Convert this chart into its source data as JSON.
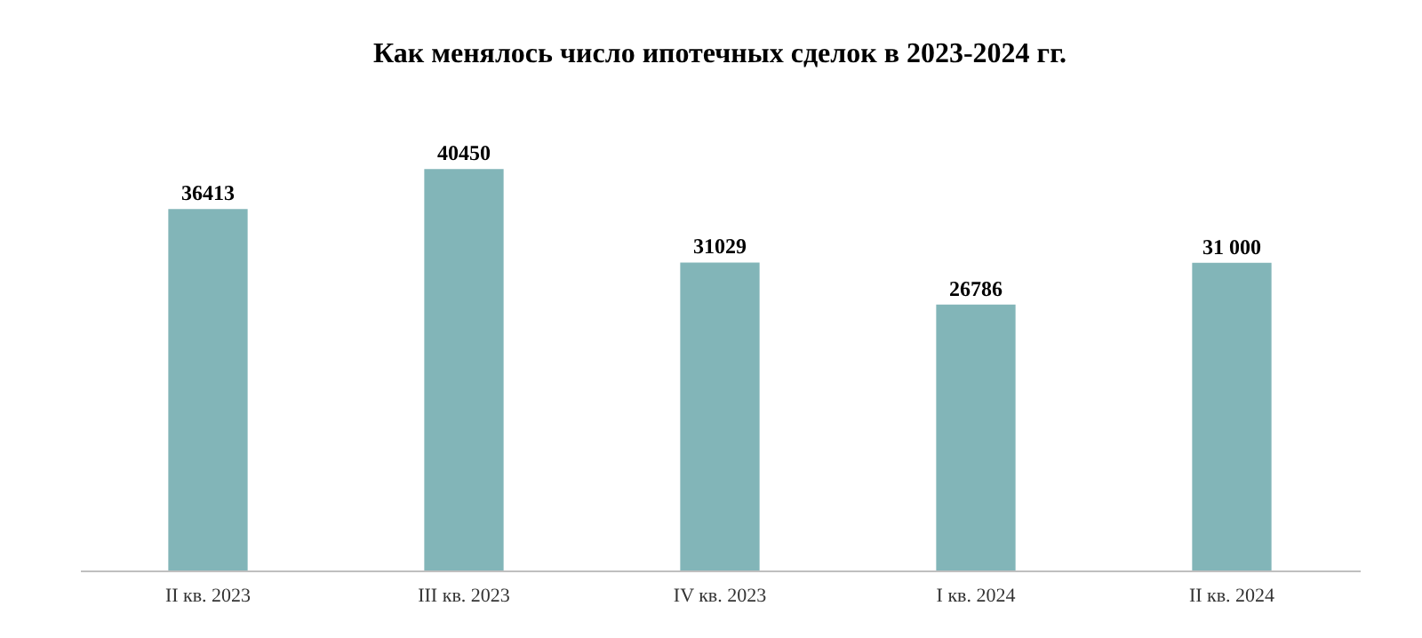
{
  "chart_data": {
    "type": "bar",
    "title": "Как менялось число ипотечных сделок в 2023-2024 гг.",
    "categories": [
      "II кв. 2023",
      "III кв. 2023",
      "IV кв. 2023",
      "I кв. 2024",
      "II кв. 2024"
    ],
    "values": [
      36413,
      40450,
      31029,
      26786,
      31000
    ],
    "value_labels": [
      "36413",
      "40450",
      "31029",
      "26786",
      "31 000"
    ],
    "color": "#82b5b8"
  }
}
